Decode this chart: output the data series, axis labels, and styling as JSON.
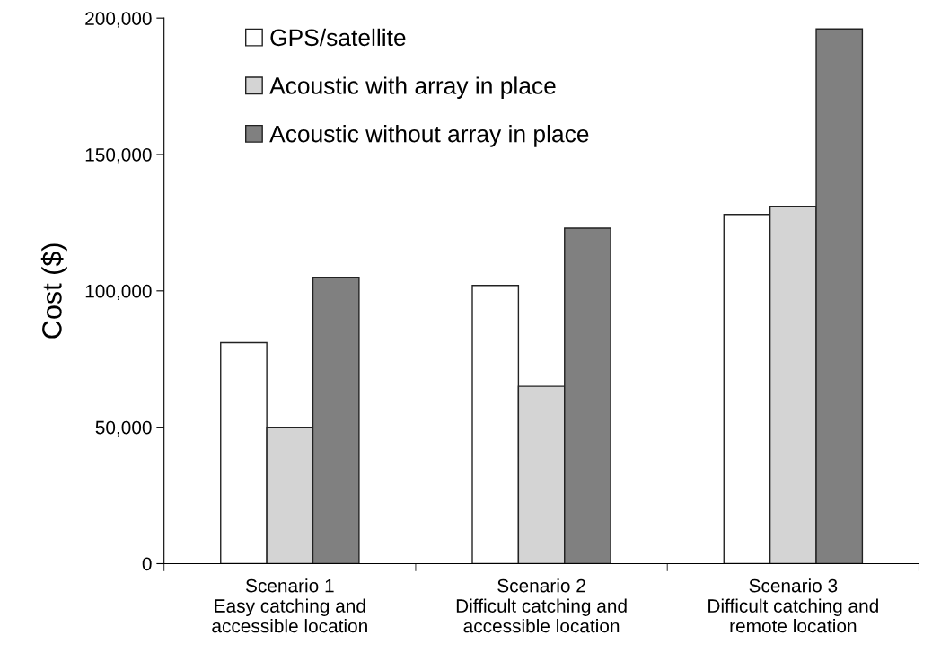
{
  "chart_data": {
    "type": "bar",
    "ylabel": "Cost ($)",
    "categories": [
      "Scenario 1\nEasy catching and\naccessible location",
      "Scenario 2\nDifficult catching and\naccessible location",
      "Scenario 3\nDifficult catching and\nremote location"
    ],
    "series": [
      {
        "name": "GPS/satellite",
        "color": "#ffffff",
        "values": [
          81000,
          102000,
          128000
        ]
      },
      {
        "name": "Acoustic with array in place",
        "color": "#d4d4d4",
        "values": [
          50000,
          65000,
          131000
        ]
      },
      {
        "name": "Acoustic without array in place",
        "color": "#808080",
        "values": [
          105000,
          123000,
          196000
        ]
      }
    ],
    "ylim": [
      0,
      200000
    ],
    "yticks": [
      {
        "value": 0,
        "label": "0"
      },
      {
        "value": 50000,
        "label": "50,000"
      },
      {
        "value": 100000,
        "label": "100,000"
      },
      {
        "value": 150000,
        "label": "150,000"
      },
      {
        "value": 200000,
        "label": "200,000"
      }
    ],
    "legend": "top left",
    "grid": false
  }
}
